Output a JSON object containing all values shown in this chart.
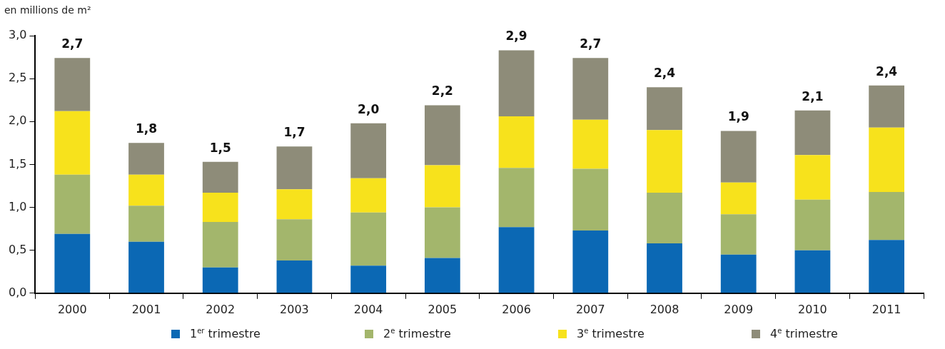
{
  "chart_data": {
    "type": "bar",
    "stacked": true,
    "ylabel": "en millions de m²",
    "categories": [
      "2000",
      "2001",
      "2002",
      "2003",
      "2004",
      "2005",
      "2006",
      "2007",
      "2008",
      "2009",
      "2010",
      "2011"
    ],
    "series": [
      {
        "name": "1$^{er}$ trimestre",
        "color": "#0b68b4",
        "values": [
          0.69,
          0.6,
          0.3,
          0.38,
          0.32,
          0.41,
          0.77,
          0.73,
          0.58,
          0.45,
          0.5,
          0.62
        ]
      },
      {
        "name": "2$^{e}$ trimestre",
        "color": "#a3b66c",
        "values": [
          0.69,
          0.42,
          0.53,
          0.48,
          0.62,
          0.59,
          0.69,
          0.72,
          0.59,
          0.47,
          0.59,
          0.56
        ]
      },
      {
        "name": "3$^{e}$ trimestre",
        "color": "#f7e21c",
        "values": [
          0.74,
          0.36,
          0.34,
          0.35,
          0.4,
          0.49,
          0.6,
          0.57,
          0.73,
          0.37,
          0.52,
          0.75
        ]
      },
      {
        "name": "4$^{e}$ trimestre",
        "color": "#8e8c79",
        "values": [
          0.62,
          0.37,
          0.36,
          0.5,
          0.64,
          0.7,
          0.77,
          0.72,
          0.5,
          0.6,
          0.52,
          0.49
        ]
      }
    ],
    "totals": [
      "2,7",
      "1,8",
      "1,5",
      "1,7",
      "2,0",
      "2,2",
      "2,9",
      "2,7",
      "2,4",
      "1,9",
      "2,1",
      "2,4"
    ],
    "ylim": [
      0,
      3
    ],
    "yticks": [
      {
        "value": 0,
        "label": "0,0"
      },
      {
        "value": 0.5,
        "label": "0,5"
      },
      {
        "value": 1,
        "label": "1,0"
      },
      {
        "value": 1.5,
        "label": "1,5"
      },
      {
        "value": 2,
        "label": "2,0"
      },
      {
        "value": 2.5,
        "label": "2,5"
      },
      {
        "value": 3,
        "label": "3,0"
      }
    ],
    "grid": false,
    "legend": "bottom"
  }
}
